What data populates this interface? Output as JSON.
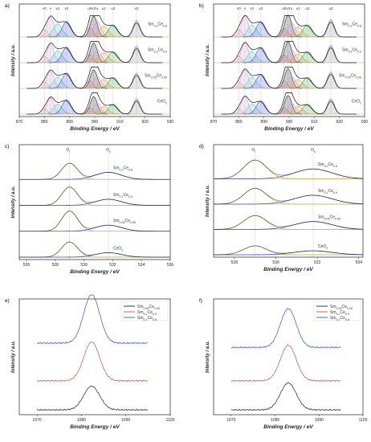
{
  "chart_data": [
    {
      "panel": "a)",
      "type": "line",
      "subtype": "xps-ce3d-deconvolution",
      "xlabel": "Binding Energy / eV",
      "ylabel": "Intensity / a.u.",
      "xlim": [
        870,
        930
      ],
      "xticks": [
        870,
        880,
        890,
        900,
        910,
        920,
        930
      ],
      "peak_labels": [
        "v0",
        "v",
        "v1",
        "v2",
        "u0",
        "v3",
        "u",
        "u1",
        "u2",
        "u3"
      ],
      "peak_positions": [
        880.0,
        882.4,
        885.3,
        888.8,
        898.0,
        899.6,
        901.0,
        903.6,
        907.3,
        916.6
      ],
      "series": [
        {
          "name": "Sm0.2Ce0.8",
          "label_parts": [
            "Sm",
            "0.2",
            "Ce",
            "0.8"
          ],
          "amplitudes": [
            0.35,
            0.9,
            0.6,
            0.7,
            0.45,
            0.95,
            0.7,
            0.5,
            0.55,
            0.75
          ]
        },
        {
          "name": "Sm0.1Ce0.9",
          "label_parts": [
            "Sm",
            "0.1",
            "Ce",
            "0.9"
          ],
          "amplitudes": [
            0.3,
            0.85,
            0.55,
            0.7,
            0.4,
            0.9,
            0.6,
            0.45,
            0.5,
            0.75
          ]
        },
        {
          "name": "Sm0.05Ce0.95",
          "label_parts": [
            "Sm",
            "0.05",
            "Ce",
            "0.95"
          ],
          "amplitudes": [
            0.3,
            0.8,
            0.5,
            0.7,
            0.35,
            0.85,
            0.55,
            0.4,
            0.5,
            0.7
          ]
        },
        {
          "name": "CeO2",
          "label_parts": [
            "CeO",
            "2",
            "",
            ""
          ],
          "amplitudes": [
            0.25,
            0.75,
            0.45,
            0.65,
            0.3,
            0.8,
            0.5,
            0.35,
            0.45,
            0.7
          ]
        }
      ]
    },
    {
      "panel": "b)",
      "type": "line",
      "subtype": "xps-ce3d-deconvolution",
      "xlabel": "Binding Energy / eV",
      "ylabel": "Intensity / a.u.",
      "xlim": [
        870,
        930
      ],
      "xticks": [
        870,
        880,
        890,
        900,
        910,
        920,
        930
      ],
      "peak_labels": [
        "v0",
        "v",
        "v1",
        "v2",
        "u0",
        "v3",
        "u",
        "u1",
        "u2",
        "u3"
      ],
      "peak_positions": [
        880.0,
        882.4,
        885.3,
        888.8,
        898.0,
        899.6,
        901.0,
        903.6,
        907.3,
        916.6
      ],
      "series": [
        {
          "name": "Sm0.2Ce0.8",
          "label_parts": [
            "Sm",
            "0.2",
            "Ce",
            "0.8"
          ],
          "amplitudes": [
            0.35,
            0.95,
            0.55,
            0.7,
            0.4,
            1.0,
            0.65,
            0.45,
            0.55,
            0.8
          ]
        },
        {
          "name": "Sm0.1Ce0.9",
          "label_parts": [
            "Sm",
            "0.1",
            "Ce",
            "0.9"
          ],
          "amplitudes": [
            0.3,
            0.9,
            0.5,
            0.7,
            0.35,
            0.95,
            0.6,
            0.4,
            0.5,
            0.8
          ]
        },
        {
          "name": "Sm0.05Ce0.95",
          "label_parts": [
            "Sm",
            "0.05",
            "Ce",
            "0.95"
          ],
          "amplitudes": [
            0.3,
            0.85,
            0.5,
            0.65,
            0.35,
            0.9,
            0.55,
            0.4,
            0.5,
            0.75
          ]
        },
        {
          "name": "CeO2",
          "label_parts": [
            "CeO",
            "2",
            "",
            ""
          ],
          "amplitudes": [
            0.25,
            0.8,
            0.45,
            0.6,
            0.3,
            0.85,
            0.5,
            0.35,
            0.45,
            0.7
          ]
        }
      ]
    },
    {
      "panel": "c)",
      "type": "line",
      "subtype": "xps-o1s-deconvolution",
      "xlabel": "Binding Energy / eV",
      "ylabel": "Intensity / a.u.",
      "xlim": [
        525.5,
        536
      ],
      "xticks": [
        526,
        528,
        530,
        532,
        534,
        536
      ],
      "component_labels": [
        "O",
        "l",
        "O",
        "s"
      ],
      "component_positions": [
        529.0,
        531.7
      ],
      "series": [
        {
          "name": "Sm0.2Ce0.8",
          "label_parts": [
            "Sm",
            "0.2",
            "Ce",
            "0.8"
          ],
          "lattice": 0.8,
          "surface": 0.35
        },
        {
          "name": "Sm0.1Ce0.9",
          "label_parts": [
            "Sm",
            "0.1",
            "Ce",
            "0.9"
          ],
          "lattice": 0.9,
          "surface": 0.3
        },
        {
          "name": "Sm0.05Ce0.95",
          "label_parts": [
            "Sm",
            "0.05",
            "Ce",
            "0.95"
          ],
          "lattice": 1.0,
          "surface": 0.3
        },
        {
          "name": "CeO2",
          "label_parts": [
            "CeO",
            "2",
            "",
            ""
          ],
          "lattice": 0.75,
          "surface": 0.22
        }
      ]
    },
    {
      "panel": "d)",
      "type": "line",
      "subtype": "xps-o1s-deconvolution",
      "xlabel": "Binding Energy / eV",
      "ylabel": "Intensity / a.u.",
      "xlim": [
        527,
        534.2
      ],
      "xticks": [
        528,
        530,
        532,
        534
      ],
      "component_labels": [
        "O",
        "l",
        "O",
        "s"
      ],
      "component_positions": [
        529.0,
        531.8
      ],
      "series": [
        {
          "name": "Sm0.2Ce0.8",
          "label_parts": [
            "Sm",
            "0.2",
            "Ce",
            "0.8"
          ],
          "lattice": 0.95,
          "surface": 0.5
        },
        {
          "name": "Sm0.1Ce0.9",
          "label_parts": [
            "Sm",
            "0.1",
            "Ce",
            "0.9"
          ],
          "lattice": 0.8,
          "surface": 0.45
        },
        {
          "name": "Sm0.05Ce0.95",
          "label_parts": [
            "Sm",
            "0.05",
            "Ce",
            "0.95"
          ],
          "lattice": 0.7,
          "surface": 0.4
        },
        {
          "name": "CeO2",
          "label_parts": [
            "CeO",
            "2",
            "",
            ""
          ],
          "lattice": 0.45,
          "surface": 0.2
        }
      ]
    },
    {
      "panel": "e)",
      "type": "line",
      "subtype": "xps-sm3d",
      "xlabel": "Binding Energy / eV",
      "ylabel": "Intensity / a.u.",
      "xlim": [
        1066,
        1100
      ],
      "xticks": [
        1070,
        1080,
        1090,
        1100
      ],
      "peak_center": 1082.3,
      "legend_position": "top-right",
      "series": [
        {
          "name": "Sm0.05Ce0.95",
          "label_parts": [
            "Sm",
            "0.05",
            "Ce",
            "0.95"
          ],
          "color": "#222222",
          "offset": 0.0,
          "height": 0.22
        },
        {
          "name": "Sm0.1Ce0.9",
          "label_parts": [
            "Sm",
            "0.1",
            "Ce",
            "0.9"
          ],
          "color": "#c0504d",
          "offset": 0.27,
          "height": 0.36
        },
        {
          "name": "Sm0.2Ce0.8",
          "label_parts": [
            "Sm",
            "0.2",
            "Ce",
            "0.8"
          ],
          "color": "#3a4fcf",
          "offset": 0.62,
          "height": 0.45
        }
      ]
    },
    {
      "panel": "f)",
      "type": "line",
      "subtype": "xps-sm3d",
      "xlabel": "Binding Energy / eV",
      "ylabel": "Intensity / a.u.",
      "xlim": [
        1066,
        1100
      ],
      "xticks": [
        1070,
        1080,
        1090,
        1100
      ],
      "peak_center": 1083.0,
      "legend_position": "top-right",
      "series": [
        {
          "name": "Sm0.05Ce0.95",
          "label_parts": [
            "Sm",
            "0.05",
            "Ce",
            "0.95"
          ],
          "color": "#222222",
          "offset": 0.0,
          "height": 0.25
        },
        {
          "name": "Sm0.1Ce0.9",
          "label_parts": [
            "Sm",
            "0.1",
            "Ce",
            "0.9"
          ],
          "color": "#c0504d",
          "offset": 0.27,
          "height": 0.33
        },
        {
          "name": "Sm0.2Ce0.8",
          "label_parts": [
            "Sm",
            "0.2",
            "Ce",
            "0.8"
          ],
          "color": "#3a4fcf",
          "offset": 0.58,
          "height": 0.36
        }
      ]
    }
  ],
  "colors": {
    "ce_components": [
      "#e8a0a0",
      "#c9a0d8",
      "#62c4c4",
      "#3a4fcf",
      "#e8a0a0",
      "#222222",
      "#c9a0d8",
      "#e6a24a",
      "#3a9a3a",
      "#8a8a8a"
    ],
    "o_lattice": "#d4a94a",
    "o_surface": "#3a4fcf",
    "envelope": "#111111",
    "baseline": "#d4a94a"
  }
}
